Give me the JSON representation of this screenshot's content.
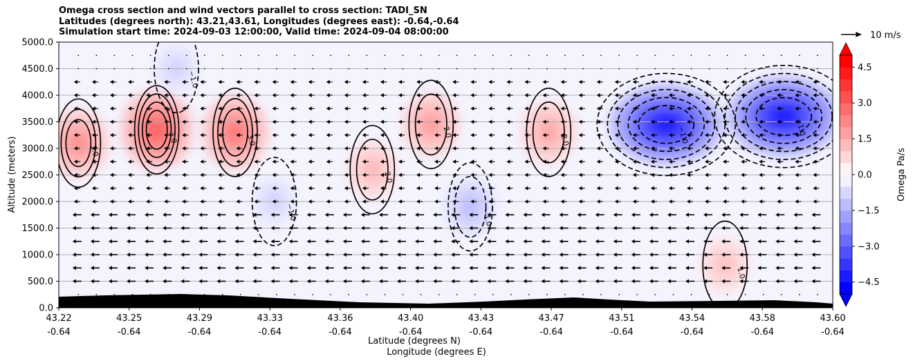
{
  "chart_data": {
    "type": "contour",
    "title_lines": [
      "Omega cross section and wind vectors parallel to cross section: TADI_SN",
      "Latitudes (degrees north): 43.21,43.61, Longitudes (degrees east): -0.64,-0.64",
      "Simulation start time: 2024-09-03 12:00:00, Valid time: 2024-09-04 08:00:00"
    ],
    "ylabel": "Altitude (meters)",
    "xlabel_line1": "Latitude (degrees N)",
    "xlabel_line2": "Longitude (degrees E)",
    "ylim": [
      0,
      5000
    ],
    "y_ticks": [
      "0.0",
      "500.0",
      "1000.0",
      "1500.0",
      "2000.0",
      "2500.0",
      "3000.0",
      "3500.0",
      "4000.0",
      "4500.0",
      "5000.0"
    ],
    "x_ticks": [
      {
        "lat": "43.22",
        "lon": "-0.64"
      },
      {
        "lat": "43.25",
        "lon": "-0.64"
      },
      {
        "lat": "43.29",
        "lon": "-0.64"
      },
      {
        "lat": "43.33",
        "lon": "-0.64"
      },
      {
        "lat": "43.36",
        "lon": "-0.64"
      },
      {
        "lat": "43.40",
        "lon": "-0.64"
      },
      {
        "lat": "43.43",
        "lon": "-0.64"
      },
      {
        "lat": "43.47",
        "lon": "-0.64"
      },
      {
        "lat": "43.51",
        "lon": "-0.64"
      },
      {
        "lat": "43.54",
        "lon": "-0.64"
      },
      {
        "lat": "43.58",
        "lon": "-0.64"
      },
      {
        "lat": "43.60",
        "lon": "-0.64"
      }
    ],
    "grid": true,
    "colorbar": {
      "label": "Omega Pa/s",
      "range": [
        -5,
        5
      ],
      "ticks": [
        "4.5",
        "3.0",
        "1.5",
        "0.0",
        "−1.5",
        "−3.0",
        "−4.5"
      ],
      "colors": {
        "low": "#0000ff",
        "mid": "#ffffff",
        "high": "#ff0000"
      },
      "extend": "both"
    },
    "quiver_key": "10 m/s",
    "contour_labels": [
      "1.0",
      "2.0",
      "3.0",
      "−1.0",
      "0.0"
    ],
    "features": [
      {
        "type": "max",
        "lat": 43.22,
        "alt": 3100,
        "value": 2.5
      },
      {
        "type": "max",
        "lat": 43.26,
        "alt": 3350,
        "value": 3.5
      },
      {
        "type": "max",
        "lat": 43.3,
        "alt": 3300,
        "value": 3.0
      },
      {
        "type": "max",
        "lat": 43.4,
        "alt": 3450,
        "value": 2.2
      },
      {
        "type": "max",
        "lat": 43.37,
        "alt": 2600,
        "value": 1.6
      },
      {
        "type": "max",
        "lat": 43.46,
        "alt": 3300,
        "value": 2.0
      },
      {
        "type": "min",
        "lat": 43.52,
        "alt": 3450,
        "value": -5.0
      },
      {
        "type": "min",
        "lat": 43.58,
        "alt": 3600,
        "value": -5.0
      },
      {
        "type": "min",
        "lat": 43.42,
        "alt": 1900,
        "value": -1.5
      },
      {
        "type": "max",
        "lat": 43.55,
        "alt": 800,
        "value": 1.4
      },
      {
        "type": "min",
        "lat": 43.27,
        "alt": 4500,
        "value": -1.0
      },
      {
        "type": "min",
        "lat": 43.32,
        "alt": 2000,
        "value": -1.0
      }
    ],
    "terrain_color": "#000000",
    "wind_arrows": "westward"
  }
}
